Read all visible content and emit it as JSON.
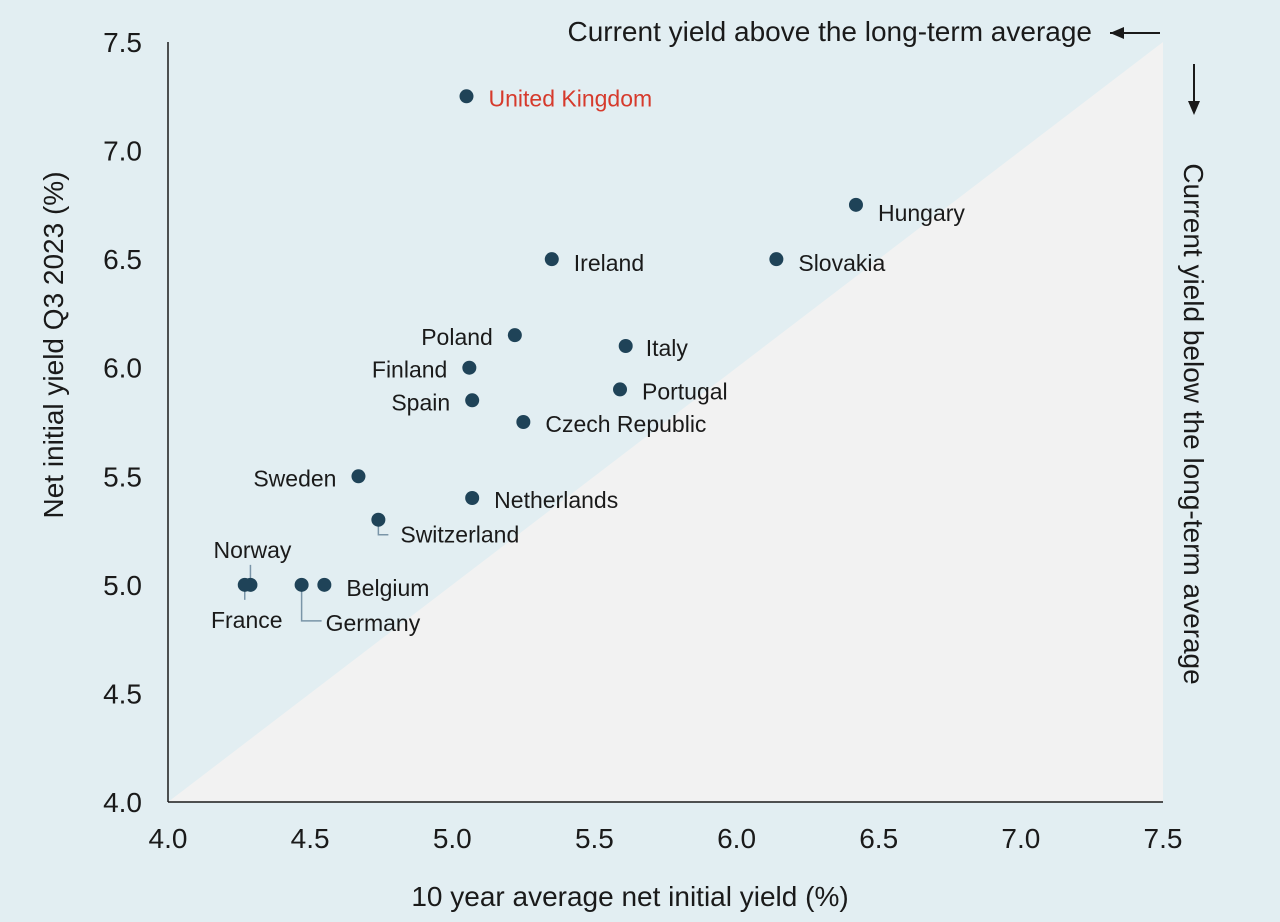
{
  "chart_data": {
    "type": "scatter",
    "xlabel": "10 year average net initial yield (%)",
    "ylabel": "Net initial yield Q3 2023 (%)",
    "xlim": [
      4.0,
      7.5
    ],
    "ylim": [
      4.0,
      7.5
    ],
    "xticks": [
      "4.0",
      "4.5",
      "5.0",
      "5.5",
      "6.0",
      "6.5",
      "7.0",
      "7.5"
    ],
    "yticks": [
      "4.0",
      "4.5",
      "5.0",
      "5.5",
      "6.0",
      "6.5",
      "7.0",
      "7.5"
    ],
    "annotations": {
      "above": "Current yield above the long-term average",
      "below": "Current yield below the long-term average"
    },
    "colors": {
      "above_region": "#e2eef2",
      "below_region": "#f2f2f2",
      "point": "#1f4358",
      "highlight_label": "#d63a2c"
    },
    "points": [
      {
        "label": "United Kingdom",
        "x": 5.05,
        "y": 7.25,
        "highlight": true
      },
      {
        "label": "Hungary",
        "x": 6.42,
        "y": 6.75
      },
      {
        "label": "Ireland",
        "x": 5.35,
        "y": 6.5
      },
      {
        "label": "Slovakia",
        "x": 6.14,
        "y": 6.5
      },
      {
        "label": "Poland",
        "x": 5.22,
        "y": 6.15
      },
      {
        "label": "Italy",
        "x": 5.61,
        "y": 6.1
      },
      {
        "label": "Finland",
        "x": 5.06,
        "y": 6.0
      },
      {
        "label": "Portugal",
        "x": 5.59,
        "y": 5.9
      },
      {
        "label": "Spain",
        "x": 5.07,
        "y": 5.85
      },
      {
        "label": "Czech Republic",
        "x": 5.25,
        "y": 5.75
      },
      {
        "label": "Sweden",
        "x": 4.67,
        "y": 5.5
      },
      {
        "label": "Netherlands",
        "x": 5.07,
        "y": 5.4
      },
      {
        "label": "Switzerland",
        "x": 4.74,
        "y": 5.3
      },
      {
        "label": "Norway",
        "x": 4.29,
        "y": 5.0
      },
      {
        "label": "France",
        "x": 4.27,
        "y": 5.0
      },
      {
        "label": "Germany",
        "x": 4.47,
        "y": 5.0
      },
      {
        "label": "Belgium",
        "x": 4.55,
        "y": 5.0
      }
    ]
  }
}
